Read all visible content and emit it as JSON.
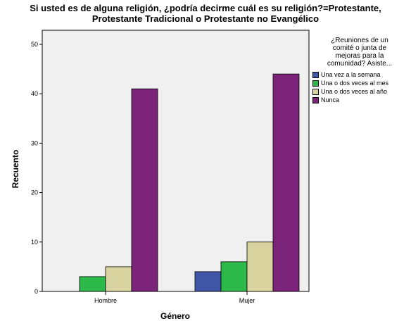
{
  "chart_data": {
    "type": "bar",
    "title_lines": [
      "Si usted es de alguna religión, ¿podría decirme cuál es su religión?=Protestante,",
      "Protestante Tradicional o Protestante no Evangélico"
    ],
    "xlabel": "Género",
    "ylabel": "Recuento",
    "categories": [
      "Hombre",
      "Mujer"
    ],
    "ylim": [
      0,
      50
    ],
    "yticks": [
      0,
      10,
      20,
      30,
      40,
      50
    ],
    "grid": false,
    "legend_position": "right",
    "legend_title": "¿Reuniones de un comité o junta de mejoras para la comunidad? Asiste...",
    "legend_title_lines": [
      "¿Reuniones de un",
      "comité o junta de",
      "mejoras para la",
      "comunidad? Asiste..."
    ],
    "series": [
      {
        "name": "Una vez a la semana",
        "color": "#3f56a6",
        "values": [
          0,
          4
        ]
      },
      {
        "name": "Una o dos veces al mes",
        "color": "#2db84a",
        "values": [
          3,
          6
        ]
      },
      {
        "name": "Una o dos veces al año",
        "color": "#d9d3a0",
        "values": [
          5,
          10
        ]
      },
      {
        "name": "Nunca",
        "color": "#7b2479",
        "values": [
          41,
          44
        ]
      }
    ],
    "plot_background": "#f0f0f0"
  }
}
